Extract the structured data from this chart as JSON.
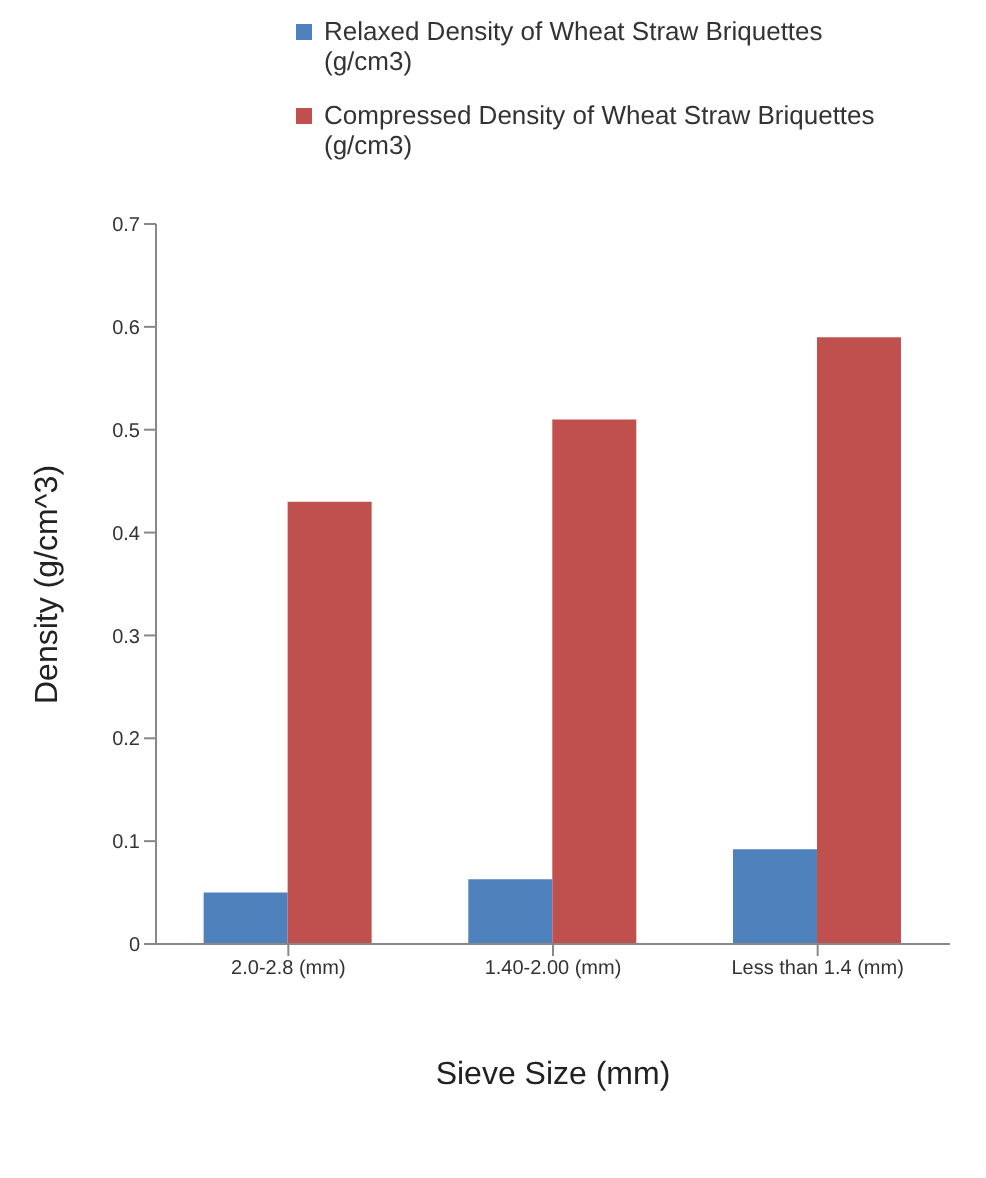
{
  "chart_data": {
    "type": "bar",
    "xlabel": "Sieve Size (mm)",
    "ylabel": "Density (g/cm^3)",
    "categories": [
      "2.0-2.8 (mm)",
      "1.40-2.00 (mm)",
      "Less than 1.4 (mm)"
    ],
    "series": [
      {
        "name": "Relaxed Density of Wheat Straw Briquettes (g/cm3)",
        "color": "#4f81bd",
        "values": [
          0.05,
          0.063,
          0.092
        ]
      },
      {
        "name": "Compressed Density of Wheat Straw Briquettes  (g/cm3)",
        "color": "#c0504d",
        "values": [
          0.43,
          0.51,
          0.59
        ]
      }
    ],
    "ylim": [
      0,
      0.7
    ],
    "yticks": [
      0,
      0.1,
      0.2,
      0.3,
      0.4,
      0.5,
      0.6,
      0.7
    ],
    "grid": false,
    "legend": "top"
  }
}
